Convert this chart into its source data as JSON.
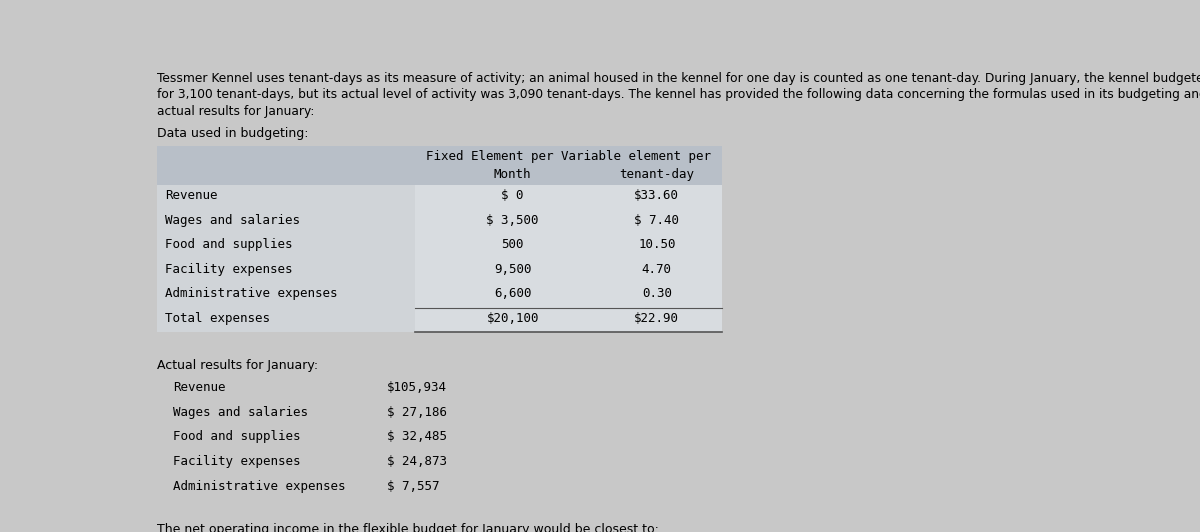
{
  "bg_color": "#c8c8c8",
  "intro_text_line1": "Tessmer Kennel uses tenant-days as its measure of activity; an animal housed in the kennel for one day is counted as one tenant-day. During January, the kennel budgeted",
  "intro_text_line2": "for 3,100 tenant-days, but its actual level of activity was 3,090 tenant-days. The kennel has provided the following data concerning the formulas used in its budgeting and its",
  "intro_text_line3": "actual results for January:",
  "section1_title": "Data used in budgeting:",
  "table1_header_line1": "Fixed Element per Variable element per",
  "table1_header_line2a": "Month",
  "table1_header_line2b": "tenant-day",
  "table1_rows": [
    [
      "Revenue",
      "$ 0",
      "$33.60"
    ],
    [
      "Wages and salaries",
      "$ 3,500",
      "$ 7.40"
    ],
    [
      "Food and supplies",
      "500",
      "10.50"
    ],
    [
      "Facility expenses",
      "9,500",
      "4.70"
    ],
    [
      "Administrative expenses",
      "6,600",
      "0.30"
    ],
    [
      "Total expenses",
      "$20,100",
      "$22.90"
    ]
  ],
  "section2_title": "Actual results for January:",
  "table2_rows": [
    [
      "Revenue",
      "$105,934"
    ],
    [
      "Wages and salaries",
      "$ 27,186"
    ],
    [
      "Food and supplies",
      "$ 32,485"
    ],
    [
      "Facility expenses",
      "$ 24,873"
    ],
    [
      "Administrative expenses",
      "$ 7,557"
    ]
  ],
  "footer_text": "The net operating income in the flexible budget for January would be closest to:",
  "header_bg": "#b8bfc8",
  "row_bg": "#d8dce0",
  "label_bg": "#d0d4d8"
}
